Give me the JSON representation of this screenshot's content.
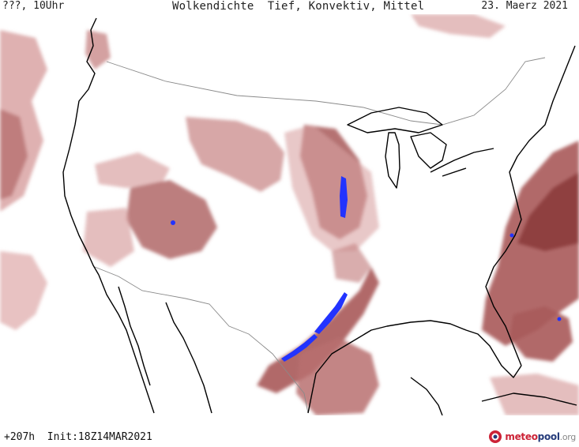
{
  "header": {
    "left": "???, 10Uhr",
    "title": "Wolkendichte  Tief, Konvektiv, Mittel",
    "date": "23. Maerz 2021"
  },
  "footer": {
    "forecast": "+207h  Init:18Z14MAR2021"
  },
  "logo": {
    "meteo": "meteo",
    "pool": "pool",
    "org": ".org",
    "icon": "meteopool-logo-icon"
  },
  "legend_colors": {
    "cloud_light": "#e6bcbc",
    "cloud_mid": "#c98a8a",
    "cloud_dense": "#a85a5a",
    "cloud_max": "#8a3a3a",
    "convective": "#2233ff",
    "coastline": "#000000",
    "border": "#888888"
  }
}
